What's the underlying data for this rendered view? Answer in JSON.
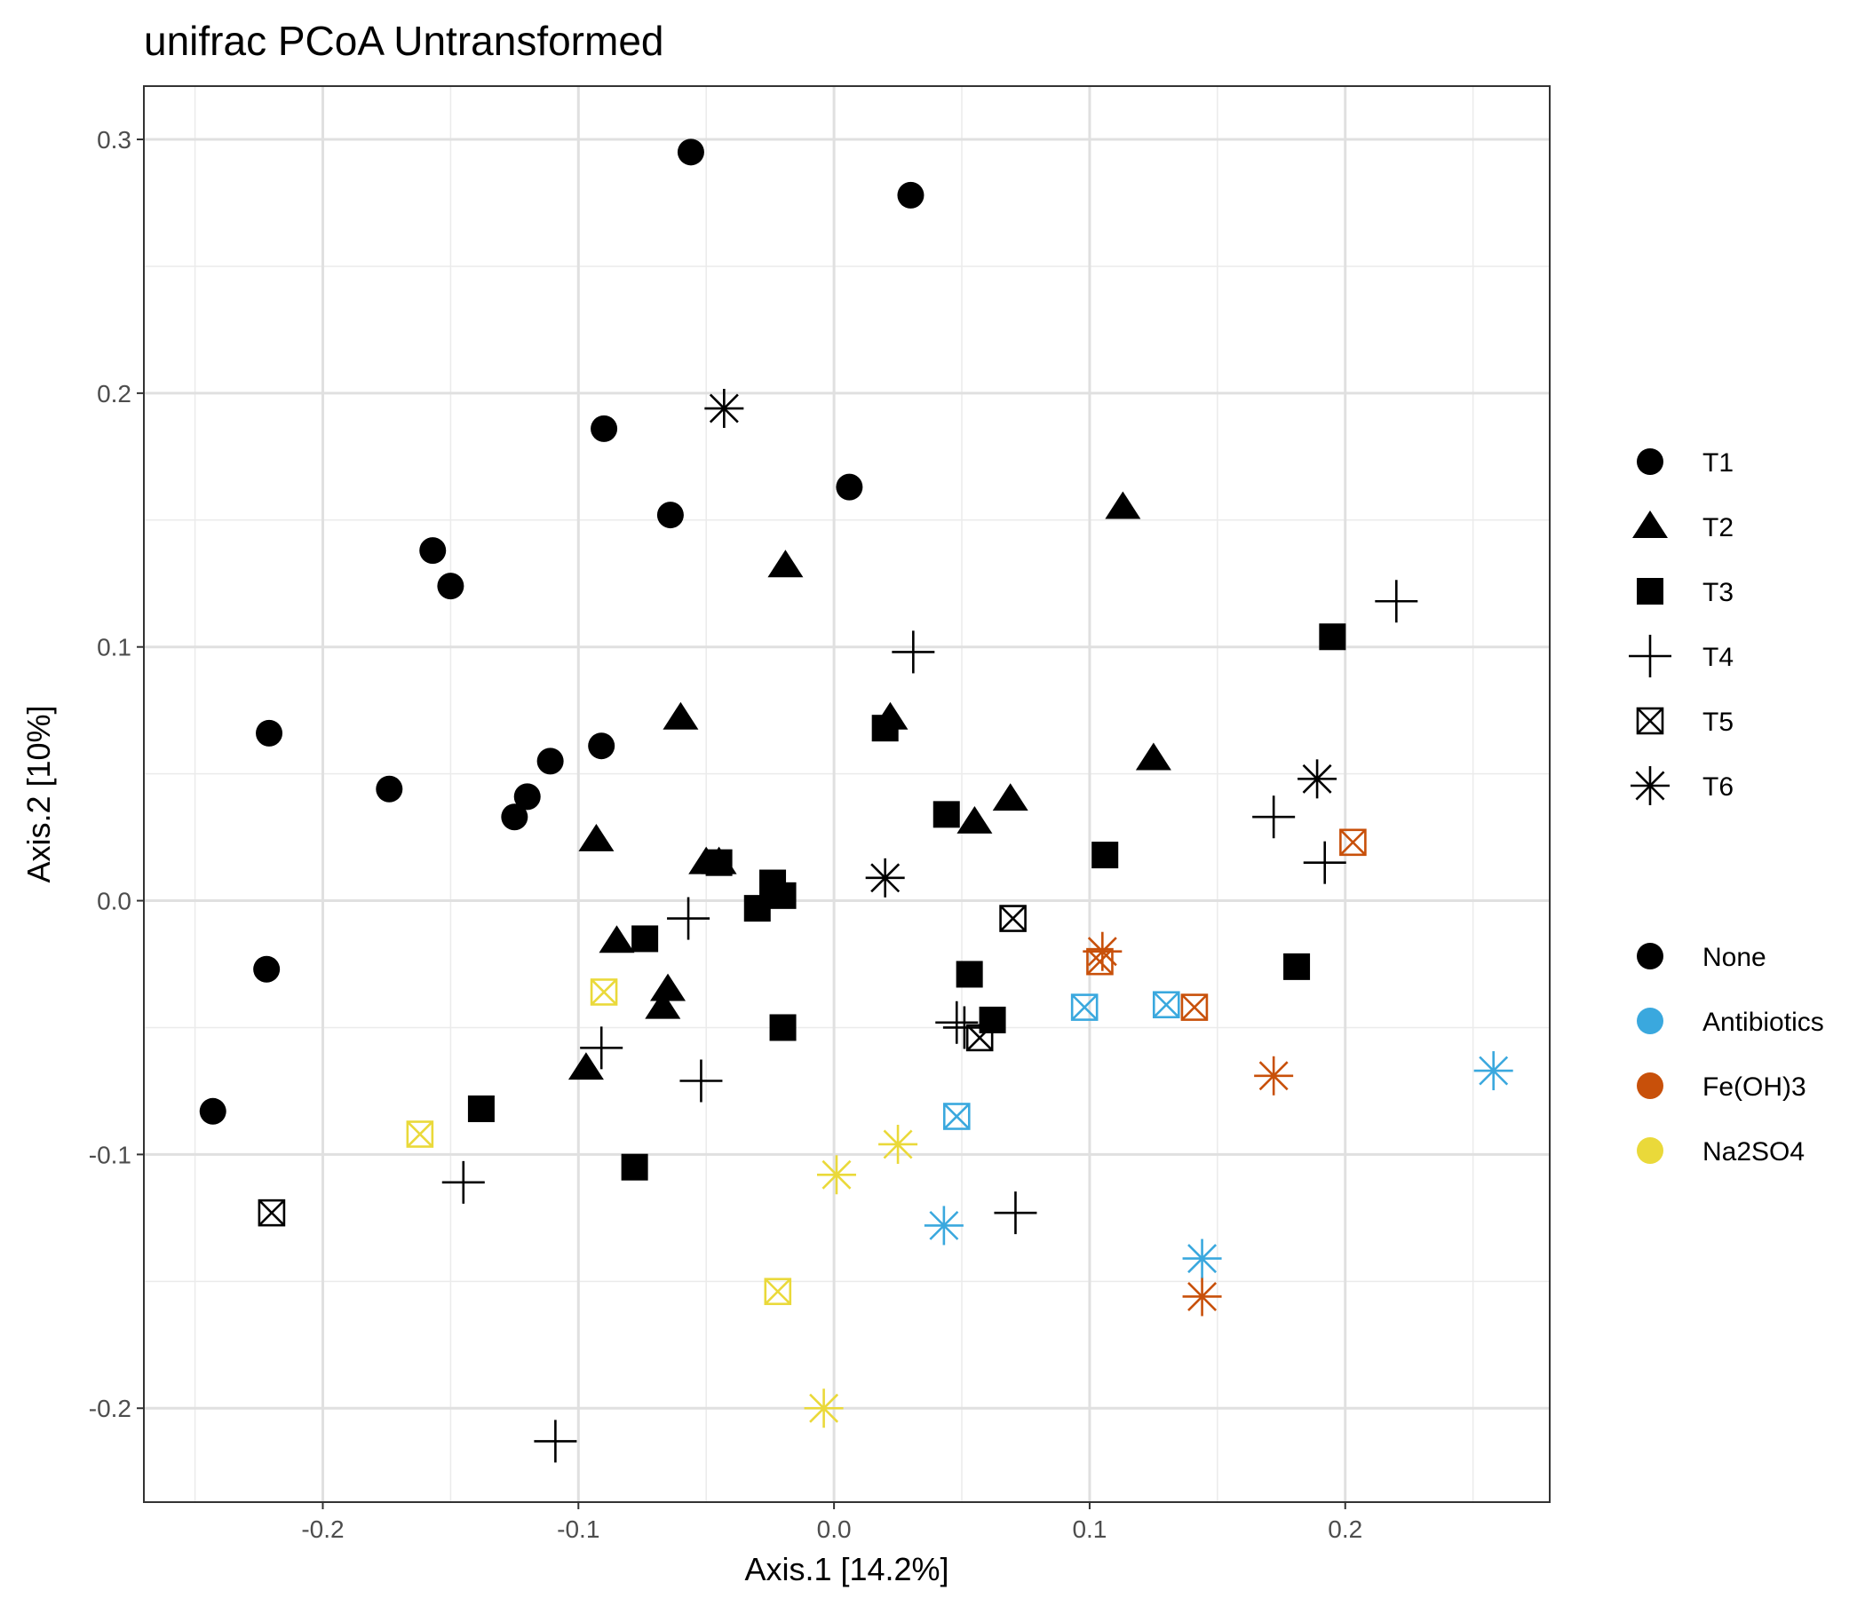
{
  "chart_data": {
    "type": "scatter",
    "title": "unifrac PCoA Untransformed",
    "xlabel": "Axis.1   [14.2%]",
    "ylabel": "Axis.2   [10%]",
    "xlim": [
      -0.27,
      0.28
    ],
    "ylim": [
      -0.237,
      0.321
    ],
    "x_ticks": [
      -0.2,
      -0.1,
      0.0,
      0.1,
      0.2
    ],
    "x_tick_labels": [
      "-0.2",
      "-0.1",
      "0.0",
      "0.1",
      "0.2"
    ],
    "y_ticks": [
      -0.2,
      -0.1,
      0.0,
      0.1,
      0.2,
      0.3
    ],
    "y_tick_labels": [
      "-0.2",
      "-0.1",
      "0.0",
      "0.1",
      "0.2",
      "0.3"
    ],
    "grid": true,
    "legend_position": "right",
    "shape_legend": [
      {
        "key": "T1",
        "label": "T1",
        "shape": "circle"
      },
      {
        "key": "T2",
        "label": "T2",
        "shape": "triangle"
      },
      {
        "key": "T3",
        "label": "T3",
        "shape": "square"
      },
      {
        "key": "T4",
        "label": "T4",
        "shape": "plus"
      },
      {
        "key": "T5",
        "label": "T5",
        "shape": "boxed-x"
      },
      {
        "key": "T6",
        "label": "T6",
        "shape": "asterisk"
      }
    ],
    "color_legend": [
      {
        "key": "None",
        "label": "None",
        "color": "#000000"
      },
      {
        "key": "Antibiotics",
        "label": "Antibiotics",
        "color": "#3AA8DE"
      },
      {
        "key": "Fe(OH)3",
        "label": "Fe(OH)3",
        "color": "#C8500A"
      },
      {
        "key": "Na2SO4",
        "label": "Na2SO4",
        "color": "#EAD93A"
      }
    ],
    "points": [
      {
        "x": -0.056,
        "y": 0.295,
        "time": "T1",
        "treatment": "None"
      },
      {
        "x": 0.03,
        "y": 0.278,
        "time": "T1",
        "treatment": "None"
      },
      {
        "x": -0.09,
        "y": 0.186,
        "time": "T1",
        "treatment": "None"
      },
      {
        "x": 0.006,
        "y": 0.163,
        "time": "T1",
        "treatment": "None"
      },
      {
        "x": -0.064,
        "y": 0.152,
        "time": "T1",
        "treatment": "None"
      },
      {
        "x": -0.157,
        "y": 0.138,
        "time": "T1",
        "treatment": "None"
      },
      {
        "x": -0.15,
        "y": 0.124,
        "time": "T1",
        "treatment": "None"
      },
      {
        "x": -0.221,
        "y": 0.066,
        "time": "T1",
        "treatment": "None"
      },
      {
        "x": -0.091,
        "y": 0.061,
        "time": "T1",
        "treatment": "None"
      },
      {
        "x": -0.111,
        "y": 0.055,
        "time": "T1",
        "treatment": "None"
      },
      {
        "x": -0.174,
        "y": 0.044,
        "time": "T1",
        "treatment": "None"
      },
      {
        "x": -0.12,
        "y": 0.041,
        "time": "T1",
        "treatment": "None"
      },
      {
        "x": -0.125,
        "y": 0.033,
        "time": "T1",
        "treatment": "None"
      },
      {
        "x": -0.222,
        "y": -0.027,
        "time": "T1",
        "treatment": "None"
      },
      {
        "x": -0.243,
        "y": -0.083,
        "time": "T1",
        "treatment": "None"
      },
      {
        "x": 0.113,
        "y": 0.155,
        "time": "T2",
        "treatment": "None"
      },
      {
        "x": -0.019,
        "y": 0.132,
        "time": "T2",
        "treatment": "None"
      },
      {
        "x": -0.06,
        "y": 0.072,
        "time": "T2",
        "treatment": "None"
      },
      {
        "x": 0.022,
        "y": 0.072,
        "time": "T2",
        "treatment": "None"
      },
      {
        "x": 0.125,
        "y": 0.056,
        "time": "T2",
        "treatment": "None"
      },
      {
        "x": 0.069,
        "y": 0.04,
        "time": "T2",
        "treatment": "None"
      },
      {
        "x": 0.055,
        "y": 0.031,
        "time": "T2",
        "treatment": "None"
      },
      {
        "x": -0.093,
        "y": 0.024,
        "time": "T2",
        "treatment": "None"
      },
      {
        "x": -0.045,
        "y": 0.015,
        "time": "T2",
        "treatment": "None"
      },
      {
        "x": -0.05,
        "y": 0.015,
        "time": "T2",
        "treatment": "None"
      },
      {
        "x": -0.085,
        "y": -0.016,
        "time": "T2",
        "treatment": "None"
      },
      {
        "x": -0.065,
        "y": -0.035,
        "time": "T2",
        "treatment": "None"
      },
      {
        "x": -0.067,
        "y": -0.042,
        "time": "T2",
        "treatment": "None"
      },
      {
        "x": -0.097,
        "y": -0.066,
        "time": "T2",
        "treatment": "None"
      },
      {
        "x": 0.195,
        "y": 0.104,
        "time": "T3",
        "treatment": "None"
      },
      {
        "x": 0.02,
        "y": 0.068,
        "time": "T3",
        "treatment": "None"
      },
      {
        "x": 0.044,
        "y": 0.034,
        "time": "T3",
        "treatment": "None"
      },
      {
        "x": 0.106,
        "y": 0.018,
        "time": "T3",
        "treatment": "None"
      },
      {
        "x": -0.045,
        "y": 0.015,
        "time": "T3",
        "treatment": "None"
      },
      {
        "x": -0.024,
        "y": 0.007,
        "time": "T3",
        "treatment": "None"
      },
      {
        "x": -0.02,
        "y": 0.002,
        "time": "T3",
        "treatment": "None"
      },
      {
        "x": -0.03,
        "y": -0.003,
        "time": "T3",
        "treatment": "None"
      },
      {
        "x": -0.074,
        "y": -0.015,
        "time": "T3",
        "treatment": "None"
      },
      {
        "x": 0.181,
        "y": -0.026,
        "time": "T3",
        "treatment": "None"
      },
      {
        "x": 0.053,
        "y": -0.029,
        "time": "T3",
        "treatment": "None"
      },
      {
        "x": 0.062,
        "y": -0.047,
        "time": "T3",
        "treatment": "None"
      },
      {
        "x": -0.02,
        "y": -0.05,
        "time": "T3",
        "treatment": "None"
      },
      {
        "x": -0.138,
        "y": -0.082,
        "time": "T3",
        "treatment": "None"
      },
      {
        "x": -0.078,
        "y": -0.105,
        "time": "T3",
        "treatment": "None"
      },
      {
        "x": 0.22,
        "y": 0.118,
        "time": "T4",
        "treatment": "None"
      },
      {
        "x": 0.031,
        "y": 0.098,
        "time": "T4",
        "treatment": "None"
      },
      {
        "x": 0.172,
        "y": 0.033,
        "time": "T4",
        "treatment": "None"
      },
      {
        "x": 0.192,
        "y": 0.015,
        "time": "T4",
        "treatment": "None"
      },
      {
        "x": -0.057,
        "y": -0.007,
        "time": "T4",
        "treatment": "None"
      },
      {
        "x": 0.048,
        "y": -0.048,
        "time": "T4",
        "treatment": "None"
      },
      {
        "x": 0.051,
        "y": -0.05,
        "time": "T4",
        "treatment": "None"
      },
      {
        "x": -0.091,
        "y": -0.058,
        "time": "T4",
        "treatment": "None"
      },
      {
        "x": -0.052,
        "y": -0.071,
        "time": "T4",
        "treatment": "None"
      },
      {
        "x": -0.145,
        "y": -0.111,
        "time": "T4",
        "treatment": "None"
      },
      {
        "x": 0.071,
        "y": -0.123,
        "time": "T4",
        "treatment": "None"
      },
      {
        "x": -0.109,
        "y": -0.213,
        "time": "T4",
        "treatment": "None"
      },
      {
        "x": 0.07,
        "y": -0.007,
        "time": "T5",
        "treatment": "None"
      },
      {
        "x": 0.057,
        "y": -0.054,
        "time": "T5",
        "treatment": "None"
      },
      {
        "x": -0.22,
        "y": -0.123,
        "time": "T5",
        "treatment": "None"
      },
      {
        "x": 0.203,
        "y": 0.023,
        "time": "T5",
        "treatment": "Fe(OH)3"
      },
      {
        "x": 0.104,
        "y": -0.024,
        "time": "T5",
        "treatment": "Fe(OH)3"
      },
      {
        "x": 0.141,
        "y": -0.042,
        "time": "T5",
        "treatment": "Fe(OH)3"
      },
      {
        "x": 0.098,
        "y": -0.042,
        "time": "T5",
        "treatment": "Antibiotics"
      },
      {
        "x": 0.13,
        "y": -0.041,
        "time": "T5",
        "treatment": "Antibiotics"
      },
      {
        "x": 0.048,
        "y": -0.085,
        "time": "T5",
        "treatment": "Antibiotics"
      },
      {
        "x": -0.09,
        "y": -0.036,
        "time": "T5",
        "treatment": "Na2SO4"
      },
      {
        "x": -0.162,
        "y": -0.092,
        "time": "T5",
        "treatment": "Na2SO4"
      },
      {
        "x": -0.022,
        "y": -0.154,
        "time": "T5",
        "treatment": "Na2SO4"
      },
      {
        "x": -0.043,
        "y": 0.194,
        "time": "T6",
        "treatment": "None"
      },
      {
        "x": 0.189,
        "y": 0.048,
        "time": "T6",
        "treatment": "None"
      },
      {
        "x": 0.02,
        "y": 0.009,
        "time": "T6",
        "treatment": "None"
      },
      {
        "x": 0.105,
        "y": -0.02,
        "time": "T6",
        "treatment": "Fe(OH)3"
      },
      {
        "x": 0.172,
        "y": -0.069,
        "time": "T6",
        "treatment": "Fe(OH)3"
      },
      {
        "x": 0.144,
        "y": -0.156,
        "time": "T6",
        "treatment": "Fe(OH)3"
      },
      {
        "x": 0.258,
        "y": -0.067,
        "time": "T6",
        "treatment": "Antibiotics"
      },
      {
        "x": 0.043,
        "y": -0.128,
        "time": "T6",
        "treatment": "Antibiotics"
      },
      {
        "x": 0.144,
        "y": -0.141,
        "time": "T6",
        "treatment": "Antibiotics"
      },
      {
        "x": 0.025,
        "y": -0.096,
        "time": "T6",
        "treatment": "Na2SO4"
      },
      {
        "x": 0.001,
        "y": -0.108,
        "time": "T6",
        "treatment": "Na2SO4"
      },
      {
        "x": -0.004,
        "y": -0.2,
        "time": "T6",
        "treatment": "Na2SO4"
      }
    ]
  }
}
